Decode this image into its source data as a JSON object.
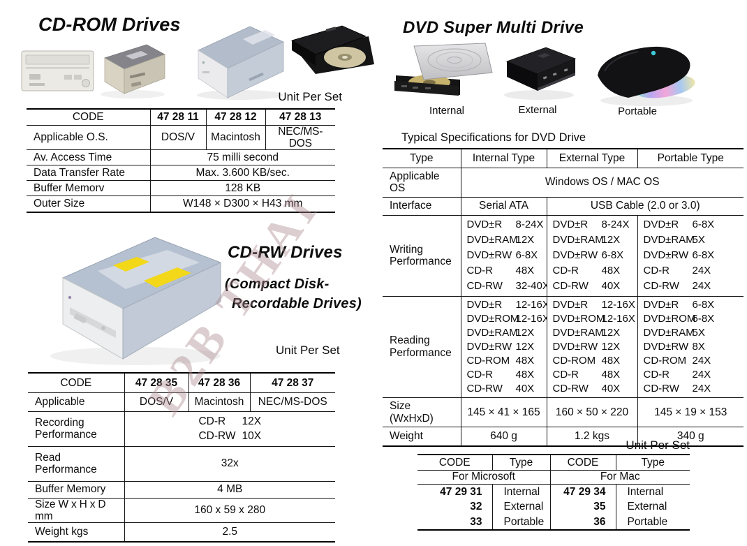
{
  "watermark": "B2B THAI",
  "cdrom_section": {
    "title": "CD-ROM Drives",
    "unit_per_set": "Unit Per Set",
    "table": {
      "header": {
        "label": "CODE",
        "codes": [
          "47 28 11",
          "47 28 12",
          "47 28 13"
        ]
      },
      "os_row": {
        "label": "Applicable O.S.",
        "values": [
          "DOS/V",
          "Macintosh",
          "NEC/MS-DOS"
        ]
      },
      "rows": [
        {
          "label": "Av. Access Time",
          "value": "75 milli second"
        },
        {
          "label": "Data Transfer Rate",
          "value": "Max. 3.600 KB/sec."
        },
        {
          "label": "Buffer Memorv",
          "value": "128 KB"
        },
        {
          "label": "Outer Size",
          "value": "W148 × D300 × H43 mm"
        }
      ]
    }
  },
  "cdrw_section": {
    "title": "CD-RW Drives",
    "subtitle_line1": "(Compact Disk-",
    "subtitle_line2": "Recordable Drives)",
    "unit_per_set": "Unit Per Set",
    "table": {
      "header": {
        "label": "CODE",
        "codes": [
          "47 28 35",
          "47 28 36",
          "47 28 37"
        ]
      },
      "os_row": {
        "label": "Applicable",
        "values": [
          "DOS/V",
          "Macintosh",
          "NEC/MS-DOS"
        ]
      },
      "recording": {
        "label": "Recording Performance",
        "pairs": [
          [
            "CD-R",
            "12X"
          ],
          [
            "CD-RW",
            "10X"
          ]
        ]
      },
      "read": {
        "label": "Read Performance",
        "value": "32x"
      },
      "rows": [
        {
          "label": "Buffer Memory",
          "value": "4 MB"
        },
        {
          "label": "Size W x H x D mm",
          "value": "160 x 59 x 280"
        },
        {
          "label": "Weight kgs",
          "value": "2.5"
        }
      ]
    }
  },
  "dvd_section": {
    "title": "DVD Super Multi Drive",
    "image_labels": [
      "Internal",
      "External",
      "Portable"
    ],
    "spec_heading": "Typical Specifications for DVD Drive",
    "spec_table": {
      "type_row": {
        "label": "Type",
        "values": [
          "Internal Type",
          "External Type",
          "Portable Type"
        ]
      },
      "os_row": {
        "label": "Applicable OS",
        "value": "Windows OS / MAC OS"
      },
      "interface_row": {
        "label": "Interface",
        "internal": "Serial ATA",
        "usb": "USB Cable (2.0 or 3.0)"
      },
      "writing": {
        "label": "Writing Performance",
        "internal": [
          [
            "DVD±R",
            "8-24X"
          ],
          [
            "DVD±RAM",
            "12X"
          ],
          [
            "DVD±RW",
            "6-8X"
          ],
          [
            "CD-R",
            "48X"
          ],
          [
            "CD-RW",
            "32-40X"
          ]
        ],
        "external": [
          [
            "DVD±R",
            "8-24X"
          ],
          [
            "DVD±RAM",
            "12X"
          ],
          [
            "DVD±RW",
            "6-8X"
          ],
          [
            "CD-R",
            "48X"
          ],
          [
            "CD-RW",
            "40X"
          ]
        ],
        "portable": [
          [
            "DVD±R",
            "6-8X"
          ],
          [
            "DVD±RAM",
            "5X"
          ],
          [
            "DVD±RW",
            "6-8X"
          ],
          [
            "CD-R",
            "24X"
          ],
          [
            "CD-RW",
            "24X"
          ]
        ]
      },
      "reading": {
        "label": "Reading Performance",
        "internal": [
          [
            "DVD±R",
            "12-16X"
          ],
          [
            "DVD±ROM",
            "12-16X"
          ],
          [
            "DVD±RAM",
            "12X"
          ],
          [
            "DVD±RW",
            "12X"
          ],
          [
            "CD-ROM",
            "48X"
          ],
          [
            "CD-R",
            "48X"
          ],
          [
            "CD-RW",
            "40X"
          ]
        ],
        "external": [
          [
            "DVD±R",
            "12-16X"
          ],
          [
            "DVD±ROM",
            "12-16X"
          ],
          [
            "DVD±RAM",
            "12X"
          ],
          [
            "DVD±RW",
            "12X"
          ],
          [
            "CD-ROM",
            "48X"
          ],
          [
            "CD-R",
            "48X"
          ],
          [
            "CD-RW",
            "40X"
          ]
        ],
        "portable": [
          [
            "DVD±R",
            "6-8X"
          ],
          [
            "DVD±ROM",
            "6-8X"
          ],
          [
            "DVD±RAM",
            "5X"
          ],
          [
            "DVD±RW",
            "8X"
          ],
          [
            "CD-ROM",
            "24X"
          ],
          [
            "CD-R",
            "24X"
          ],
          [
            "CD-RW",
            "24X"
          ]
        ]
      },
      "size_row": {
        "label": "Size (WxHxD)",
        "values": [
          "145 × 41 × 165",
          "160 × 50 × 220",
          "145 × 19 × 153"
        ]
      },
      "weight_row": {
        "label": "Weight",
        "values": [
          "640 g",
          "1.2 kgs",
          "340 g"
        ]
      }
    },
    "unit_per_set": "Unit Per Set",
    "codes_table": {
      "headers": [
        "CODE",
        "Type",
        "CODE",
        "Type"
      ],
      "groups": [
        "For Microsoft",
        "For Mac"
      ],
      "rows": [
        [
          "47 29 31",
          "Internal",
          "47 29 34",
          "Internal"
        ],
        [
          "32",
          "External",
          "35",
          "External"
        ],
        [
          "33",
          "Portable",
          "36",
          "Portable"
        ]
      ]
    }
  }
}
